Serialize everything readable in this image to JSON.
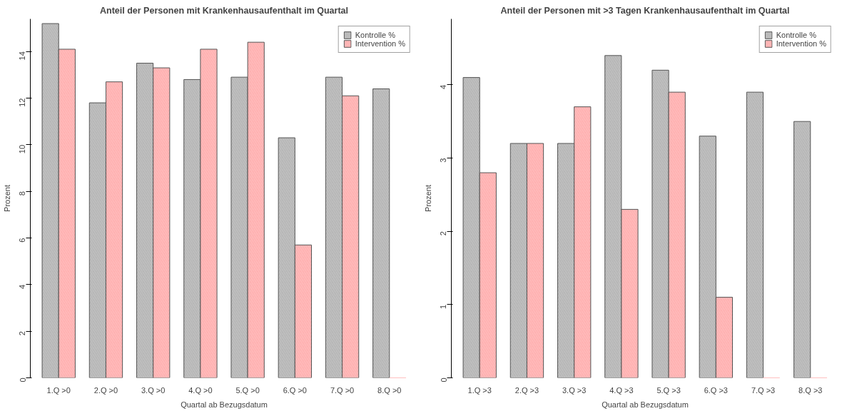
{
  "chart_data": [
    {
      "type": "bar",
      "title": "Anteil der Personen mit Krankenhausaufenthalt im Quartal",
      "xlabel": "Quartal ab Bezugsdatum",
      "ylabel": "Prozent",
      "categories": [
        "1.Q >0",
        "2.Q >0",
        "3.Q >0",
        "4.Q >0",
        "5.Q >0",
        "6.Q >0",
        "7.Q >0",
        "8.Q >0"
      ],
      "series": [
        {
          "name": "Kontrolle %",
          "color": "#b0b0b0",
          "values": [
            15.2,
            11.8,
            13.5,
            12.8,
            12.9,
            10.3,
            12.9,
            12.4
          ]
        },
        {
          "name": "Intervention %",
          "color": "#ffaaaa",
          "values": [
            14.1,
            12.7,
            13.3,
            14.1,
            14.4,
            5.7,
            12.1,
            0
          ]
        }
      ],
      "ylim": [
        0,
        15.4
      ],
      "yticks": [
        0,
        2,
        4,
        6,
        8,
        10,
        12,
        14
      ],
      "grid": false,
      "legend": "top right"
    },
    {
      "type": "bar",
      "title": "Anteil der Personen mit >3 Tagen Krankenhausaufenthalt im Quartal",
      "xlabel": "Quartal ab Bezugsdatum",
      "ylabel": "Prozent",
      "categories": [
        "1.Q >3",
        "2.Q >3",
        "3.Q >3",
        "4.Q >3",
        "5.Q >3",
        "6.Q >3",
        "7.Q >3",
        "8.Q >3"
      ],
      "series": [
        {
          "name": "Kontrolle %",
          "color": "#b0b0b0",
          "values": [
            4.1,
            3.2,
            3.2,
            4.4,
            4.2,
            3.3,
            3.9,
            3.5
          ]
        },
        {
          "name": "Intervention %",
          "color": "#ffaaaa",
          "values": [
            2.8,
            3.2,
            3.7,
            2.3,
            3.9,
            1.1,
            0,
            0
          ]
        }
      ],
      "ylim": [
        0,
        4.9
      ],
      "yticks": [
        0,
        1,
        2,
        3,
        4
      ],
      "grid": false,
      "legend": "top right"
    }
  ]
}
